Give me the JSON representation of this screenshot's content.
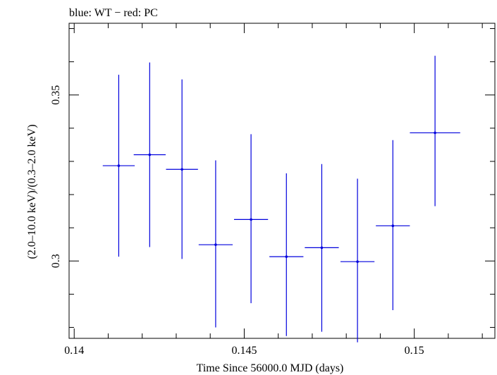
{
  "chart_data": {
    "type": "scatter",
    "title": "blue: WT − red: PC",
    "xlabel": "Time Since 56000.0 MJD (days)",
    "ylabel": "(2.0–10.0 keV)/(0.3–2.0 keV)",
    "xlim": [
      0.13985,
      0.15237
    ],
    "ylim": [
      0.2767,
      0.3716
    ],
    "x_ticks": [
      {
        "value": 0.14,
        "label": "0.14"
      },
      {
        "value": 0.145,
        "label": "0.145"
      },
      {
        "value": 0.15,
        "label": "0.15"
      }
    ],
    "y_ticks": [
      {
        "value": 0.3,
        "label": "0.3"
      },
      {
        "value": 0.35,
        "label": "0.35"
      }
    ],
    "grid": false,
    "series": [
      {
        "color": "#0000dd",
        "points": [
          {
            "x": 0.14131,
            "y": 0.3287,
            "xerr": 0.00047,
            "ylo": 0.3013,
            "yhi": 0.3561
          },
          {
            "x": 0.14222,
            "y": 0.332,
            "xerr": 0.00047,
            "ylo": 0.3042,
            "yhi": 0.3598
          },
          {
            "x": 0.14317,
            "y": 0.3276,
            "xerr": 0.00047,
            "ylo": 0.3006,
            "yhi": 0.3547
          },
          {
            "x": 0.14416,
            "y": 0.3049,
            "xerr": 0.0005,
            "ylo": 0.28,
            "yhi": 0.3303
          },
          {
            "x": 0.1452,
            "y": 0.3125,
            "xerr": 0.0005,
            "ylo": 0.2873,
            "yhi": 0.3382
          },
          {
            "x": 0.14624,
            "y": 0.3013,
            "xerr": 0.0005,
            "ylo": 0.2774,
            "yhi": 0.3264
          },
          {
            "x": 0.14728,
            "y": 0.304,
            "xerr": 0.0005,
            "ylo": 0.2787,
            "yhi": 0.3292
          },
          {
            "x": 0.14833,
            "y": 0.2998,
            "xerr": 0.0005,
            "ylo": 0.2755,
            "yhi": 0.3248
          },
          {
            "x": 0.14937,
            "y": 0.3106,
            "xerr": 0.0005,
            "ylo": 0.2852,
            "yhi": 0.3364
          },
          {
            "x": 0.15061,
            "y": 0.3386,
            "xerr": 0.00074,
            "ylo": 0.3165,
            "yhi": 0.3618
          }
        ]
      }
    ]
  }
}
